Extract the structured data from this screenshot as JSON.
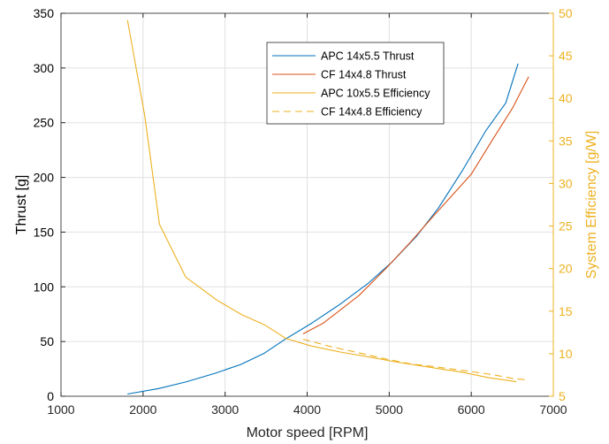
{
  "chart_data": {
    "type": "line",
    "title": "",
    "xlabel": "Motor speed [RPM]",
    "ylabel_left": "Thrust [g]",
    "ylabel_right": "System Efficiency [g/W]",
    "xlim": [
      1000,
      7000
    ],
    "ylim_left": [
      0,
      350
    ],
    "ylim_right": [
      5,
      50
    ],
    "x_ticks": [
      1000,
      2000,
      3000,
      4000,
      5000,
      6000,
      7000
    ],
    "y_left_ticks": [
      0,
      50,
      100,
      150,
      200,
      250,
      300,
      350
    ],
    "y_right_ticks": [
      5,
      10,
      15,
      20,
      25,
      30,
      35,
      40,
      45,
      50
    ],
    "grid": true,
    "legend_position": "top-center",
    "colors": {
      "left_axis": "#000000",
      "right_axis": "#EDB120",
      "grid": "#e0e0e0"
    },
    "series": [
      {
        "name": "APC 14x5.5 Thrust",
        "axis": "left",
        "color": "#0072BD",
        "style": "solid",
        "x": [
          1810,
          2190,
          2520,
          2880,
          3190,
          3470,
          3730,
          4060,
          4400,
          4740,
          5040,
          5330,
          5600,
          5890,
          6180,
          6420,
          6570
        ],
        "y": [
          2,
          7,
          13,
          21,
          29,
          39,
          52,
          67,
          84,
          103,
          123,
          146,
          172,
          206,
          243,
          268,
          304
        ]
      },
      {
        "name": "CF 14x4.8 Thrust",
        "axis": "left",
        "color": "#D95319",
        "style": "solid",
        "x": [
          3950,
          4200,
          4630,
          4950,
          5260,
          5520,
          5760,
          6000,
          6280,
          6500,
          6700
        ],
        "y": [
          57,
          67,
          92,
          116,
          141,
          163,
          183,
          203,
          237,
          263,
          292
        ]
      },
      {
        "name": "APC 10x5.5 Efficiency",
        "axis": "right",
        "color": "#EDB120",
        "style": "solid",
        "x": [
          1810,
          2020,
          2200,
          2520,
          2900,
          3200,
          3480,
          3740,
          4050,
          4400,
          4760,
          5100,
          5500,
          5900,
          6200,
          6550
        ],
        "y": [
          49.2,
          38.0,
          25.2,
          19.0,
          16.3,
          14.6,
          13.4,
          11.8,
          10.9,
          10.2,
          9.6,
          9.0,
          8.4,
          7.8,
          7.2,
          6.7
        ]
      },
      {
        "name": "CF 14x4.8 Efficiency",
        "axis": "right",
        "color": "#EDB120",
        "style": "dashed",
        "x": [
          3950,
          4300,
          4630,
          4950,
          5260,
          5520,
          5760,
          6000,
          6280,
          6500,
          6700
        ],
        "y": [
          11.7,
          10.8,
          10.1,
          9.4,
          8.8,
          8.5,
          8.2,
          7.9,
          7.5,
          7.1,
          6.9
        ]
      }
    ]
  }
}
